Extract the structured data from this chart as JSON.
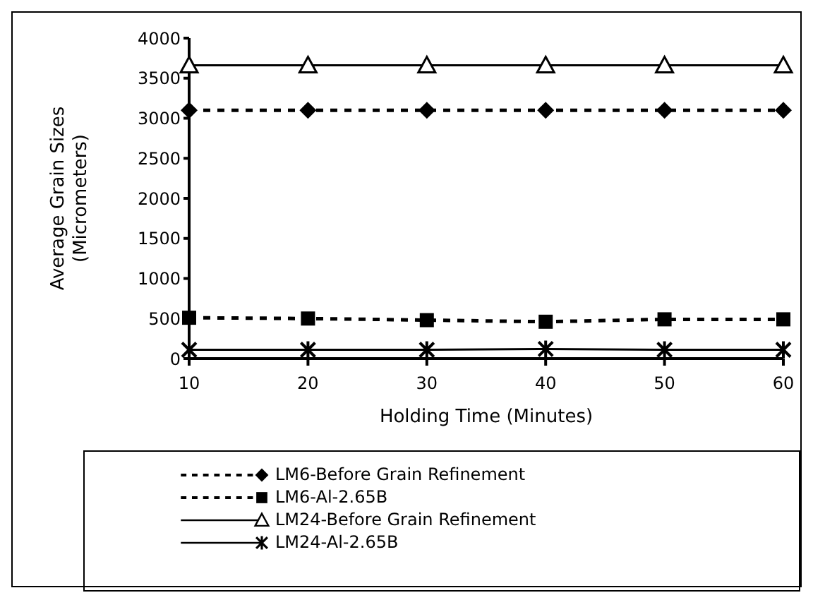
{
  "chart_data": {
    "type": "line",
    "xlabel": "Holding Time (Minutes)",
    "ylabel": "Average Grain Sizes (Micrometers)",
    "categories": [
      "10",
      "20",
      "30",
      "40",
      "50",
      "60"
    ],
    "series": [
      {
        "name": "LM6-Before Grain Refinement",
        "color": "#000000",
        "marker": "diamond",
        "line_style": "dashed",
        "values": [
          3100,
          3100,
          3100,
          3100,
          3100,
          3100
        ]
      },
      {
        "name": "LM6-Al-2.65B",
        "color": "#000000",
        "marker": "square",
        "line_style": "dashed",
        "values": [
          510,
          500,
          480,
          460,
          490,
          490
        ]
      },
      {
        "name": "LM24-Before Grain Refinement",
        "color": "#000000",
        "marker": "triangle",
        "line_style": "solid",
        "values": [
          3660,
          3660,
          3660,
          3660,
          3660,
          3660
        ]
      },
      {
        "name": "LM24-Al-2.65B",
        "color": "#000000",
        "marker": "cross",
        "line_style": "solid",
        "values": [
          110,
          110,
          110,
          120,
          110,
          110
        ]
      }
    ],
    "ylim": [
      0,
      4000
    ],
    "yticks": [
      0,
      500,
      1000,
      1500,
      2000,
      2500,
      3000,
      3500,
      4000
    ],
    "grid": false,
    "legend": "bottom"
  }
}
